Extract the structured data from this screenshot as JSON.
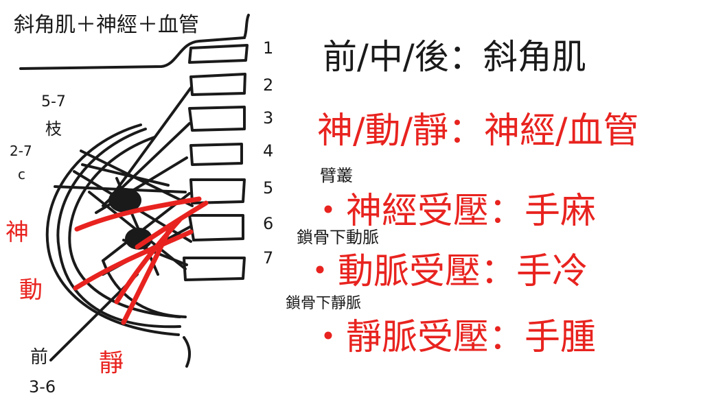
{
  "note": {
    "title": "斜角肌＋神經＋血管",
    "vertebra_numbers": [
      "1",
      "2",
      "3",
      "4",
      "5",
      "6",
      "7"
    ],
    "annotations": {
      "c5_7": "5-7",
      "branch": "枝",
      "c2_7": "2-7",
      "c": "c",
      "nerve": "神",
      "artery": "動",
      "vein": "靜",
      "front": "前",
      "c3_6": "3-6"
    },
    "colors": {
      "ink": "#1a1a1a",
      "red_ink": "#e8231f",
      "paper": "#ffffff"
    }
  },
  "summary": {
    "heading_muscle": "前/中/後：斜角肌",
    "heading_nerve": "神/動/靜：神經/血管",
    "plexus": "臂叢",
    "bullet_nerve": "・神經受壓：手麻",
    "sub_artery": "鎖骨下動脈",
    "bullet_artery": "・動脈受壓：手冷",
    "sub_vein": "鎖骨下靜脈",
    "bullet_vein": "・靜脈受壓：手腫"
  }
}
